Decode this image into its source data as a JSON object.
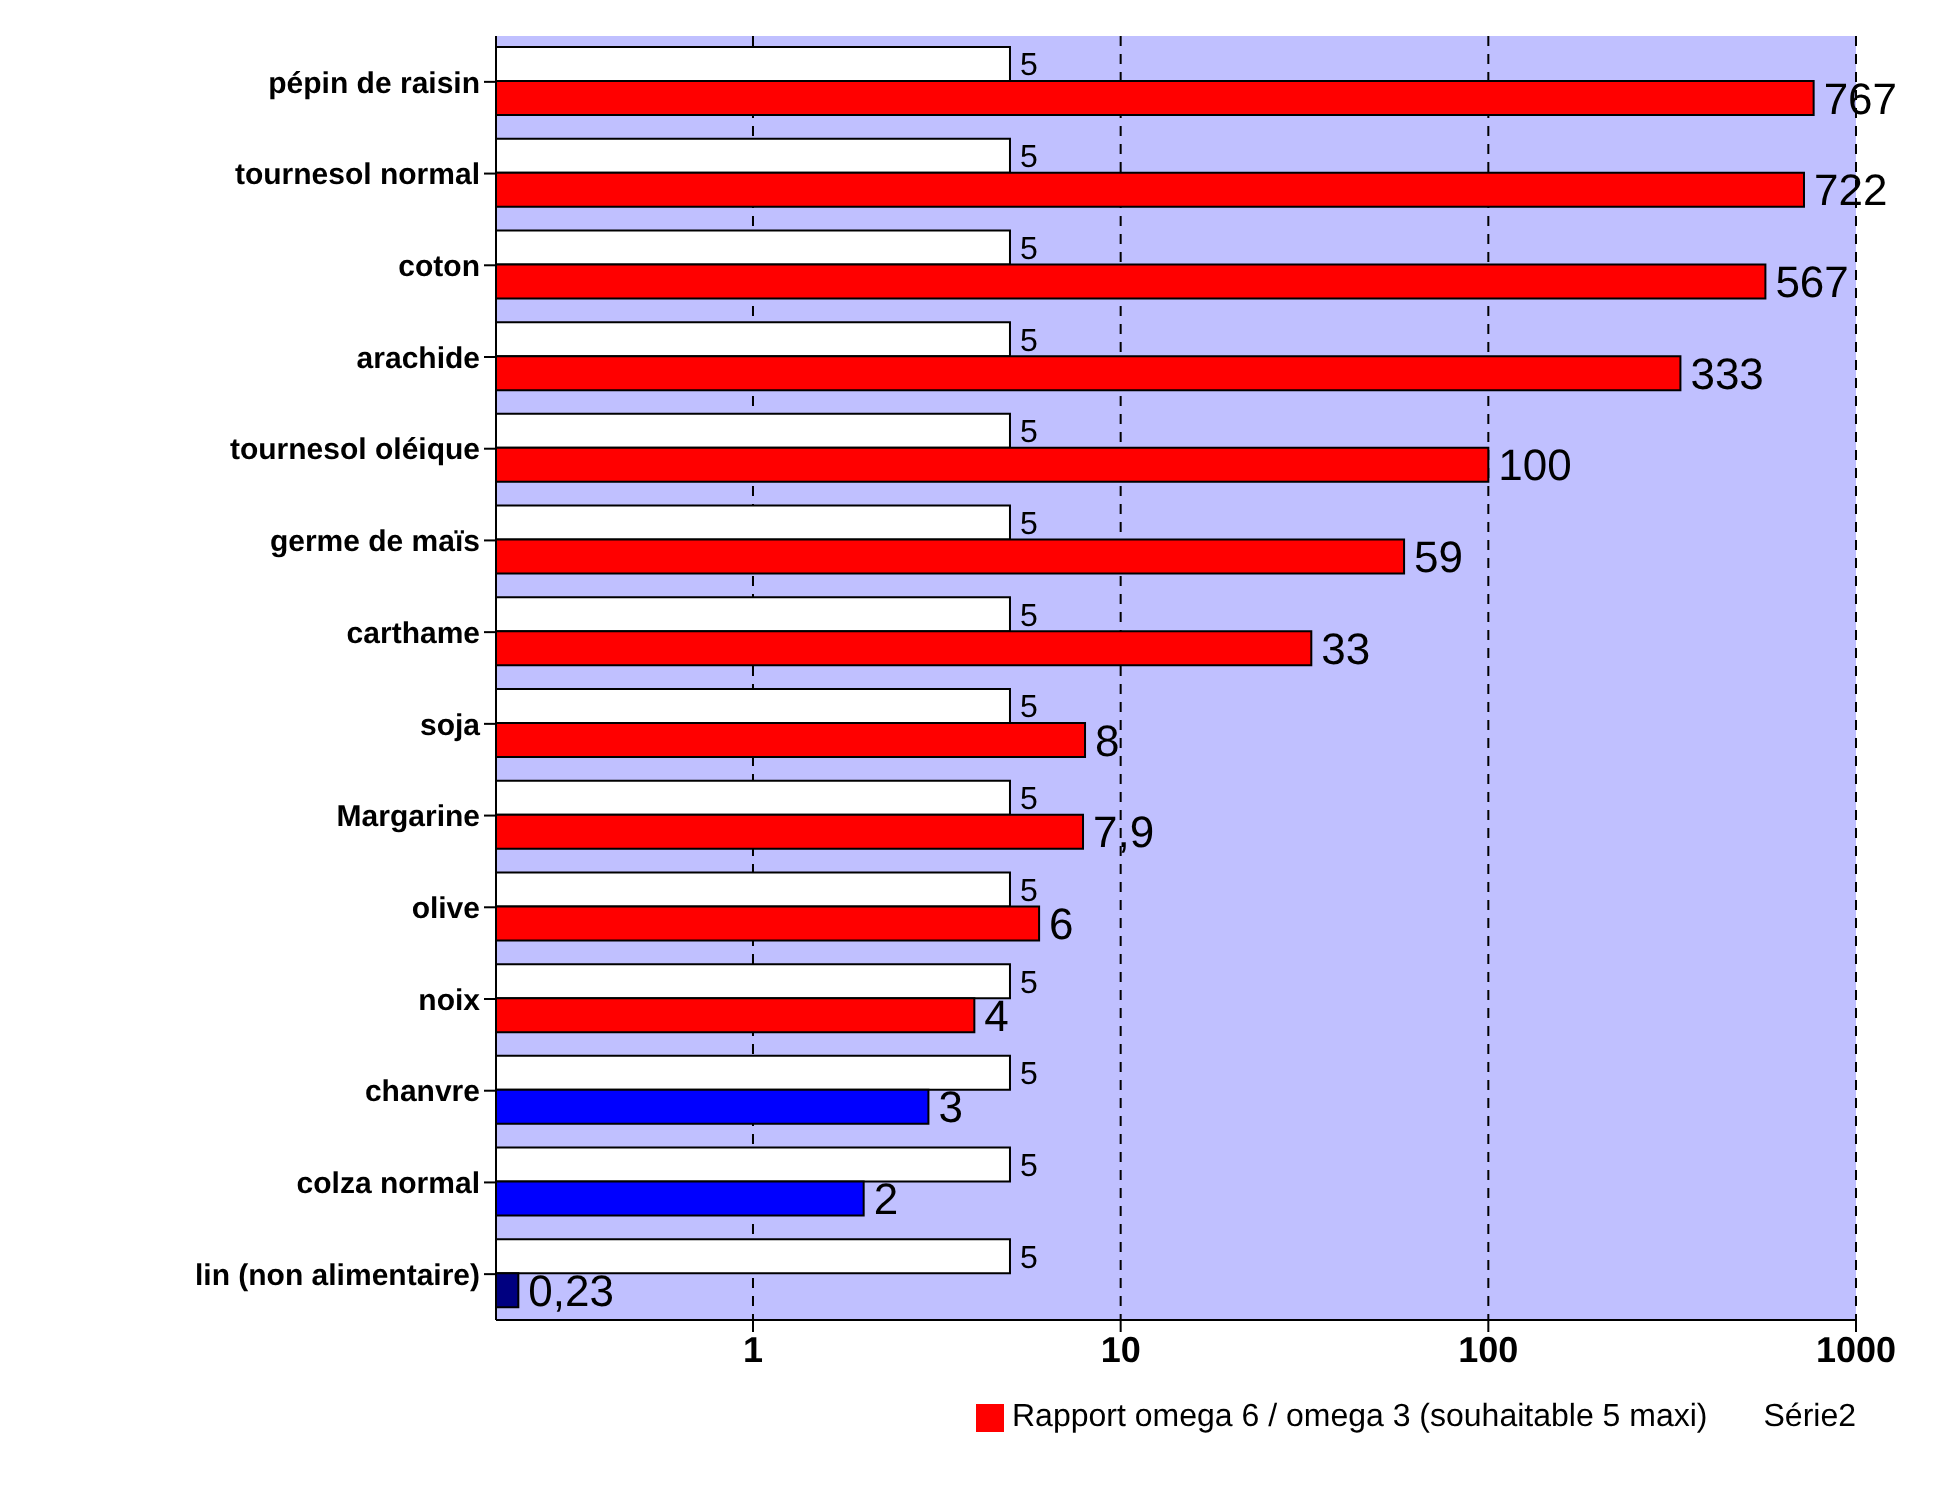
{
  "chart_data": {
    "type": "bar",
    "orientation": "horizontal",
    "categories": [
      "pépin de raisin",
      "tournesol normal",
      "coton",
      "arachide",
      "tournesol oléique",
      "germe de maïs",
      "carthame",
      "soja",
      "Margarine",
      "olive",
      "noix",
      "chanvre",
      "colza normal",
      "lin (non alimentaire)"
    ],
    "series": [
      {
        "name": "Série2",
        "color": "#ffffff",
        "values": [
          5,
          5,
          5,
          5,
          5,
          5,
          5,
          5,
          5,
          5,
          5,
          5,
          5,
          5
        ]
      },
      {
        "name": "Rapport omega 6 / omega 3 (souhaitable 5 maxi)",
        "color": "#ff0000",
        "colors": [
          "#ff0000",
          "#ff0000",
          "#ff0000",
          "#ff0000",
          "#ff0000",
          "#ff0000",
          "#ff0000",
          "#ff0000",
          "#ff0000",
          "#ff0000",
          "#ff0000",
          "#0000ff",
          "#0000ff",
          "#000080"
        ],
        "values": [
          767,
          722,
          567,
          333,
          100,
          59,
          33,
          8,
          7.9,
          6,
          4,
          3,
          2,
          0.23
        ],
        "value_labels": [
          "767",
          "722",
          "567",
          "333",
          "100",
          "59",
          "33",
          "8",
          "7,9",
          "6",
          "4",
          "3",
          "2",
          "0,23"
        ]
      }
    ],
    "data_labels": true,
    "log": "x",
    "xlim": [
      0.2,
      1000
    ],
    "xticks": [
      1,
      10,
      100,
      1000
    ],
    "grid": "x",
    "legend": "bottom"
  }
}
